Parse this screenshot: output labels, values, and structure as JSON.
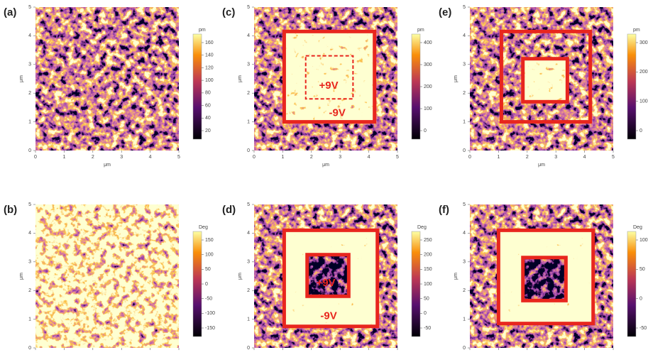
{
  "panels": [
    {
      "label": "(a)",
      "x_label": "μm",
      "y_label": "μm",
      "xticks": [
        0,
        1,
        2,
        3,
        4,
        5
      ],
      "yticks": [
        0,
        1,
        2,
        3,
        4,
        5
      ],
      "colorbar": {
        "unit": "pm",
        "ticks": [
          160,
          140,
          120,
          100,
          80,
          60,
          40,
          20
        ]
      }
    },
    {
      "label": "(b)",
      "y_label": "μm",
      "yticks": [
        0,
        1,
        2,
        3,
        4,
        5
      ],
      "colorbar": {
        "unit": "Deg",
        "ticks": [
          150,
          100,
          50,
          0,
          -50,
          -100,
          -150
        ]
      }
    },
    {
      "label": "(c)",
      "x_label": "μm",
      "y_label": "μm",
      "xticks": [
        0,
        1,
        2,
        3,
        4,
        5
      ],
      "yticks": [
        0,
        1,
        2,
        3,
        4,
        5
      ],
      "colorbar": {
        "unit": "pm",
        "ticks": [
          400,
          300,
          200,
          100,
          0
        ]
      },
      "annotations": [
        "+9V",
        "-9V"
      ]
    },
    {
      "label": "(d)",
      "y_label": "μm",
      "yticks": [
        0,
        1,
        2,
        3,
        4,
        5
      ],
      "colorbar": {
        "unit": "Deg",
        "ticks": [
          250,
          200,
          150,
          100,
          50,
          0,
          -50
        ]
      },
      "annotations": [
        "+9V",
        "-9V"
      ]
    },
    {
      "label": "(e)",
      "x_label": "μm",
      "y_label": "μm",
      "xticks": [
        0,
        1,
        2,
        3,
        4,
        5
      ],
      "yticks": [
        0,
        1,
        2,
        3,
        4,
        5
      ],
      "colorbar": {
        "unit": "pm",
        "ticks": [
          300,
          200,
          100,
          0
        ]
      }
    },
    {
      "label": "(f)",
      "y_label": "μm",
      "yticks": [
        0,
        1,
        2,
        3,
        4,
        5
      ],
      "colorbar": {
        "unit": "Deg",
        "ticks": [
          100,
          50,
          0,
          -50
        ]
      }
    }
  ]
}
